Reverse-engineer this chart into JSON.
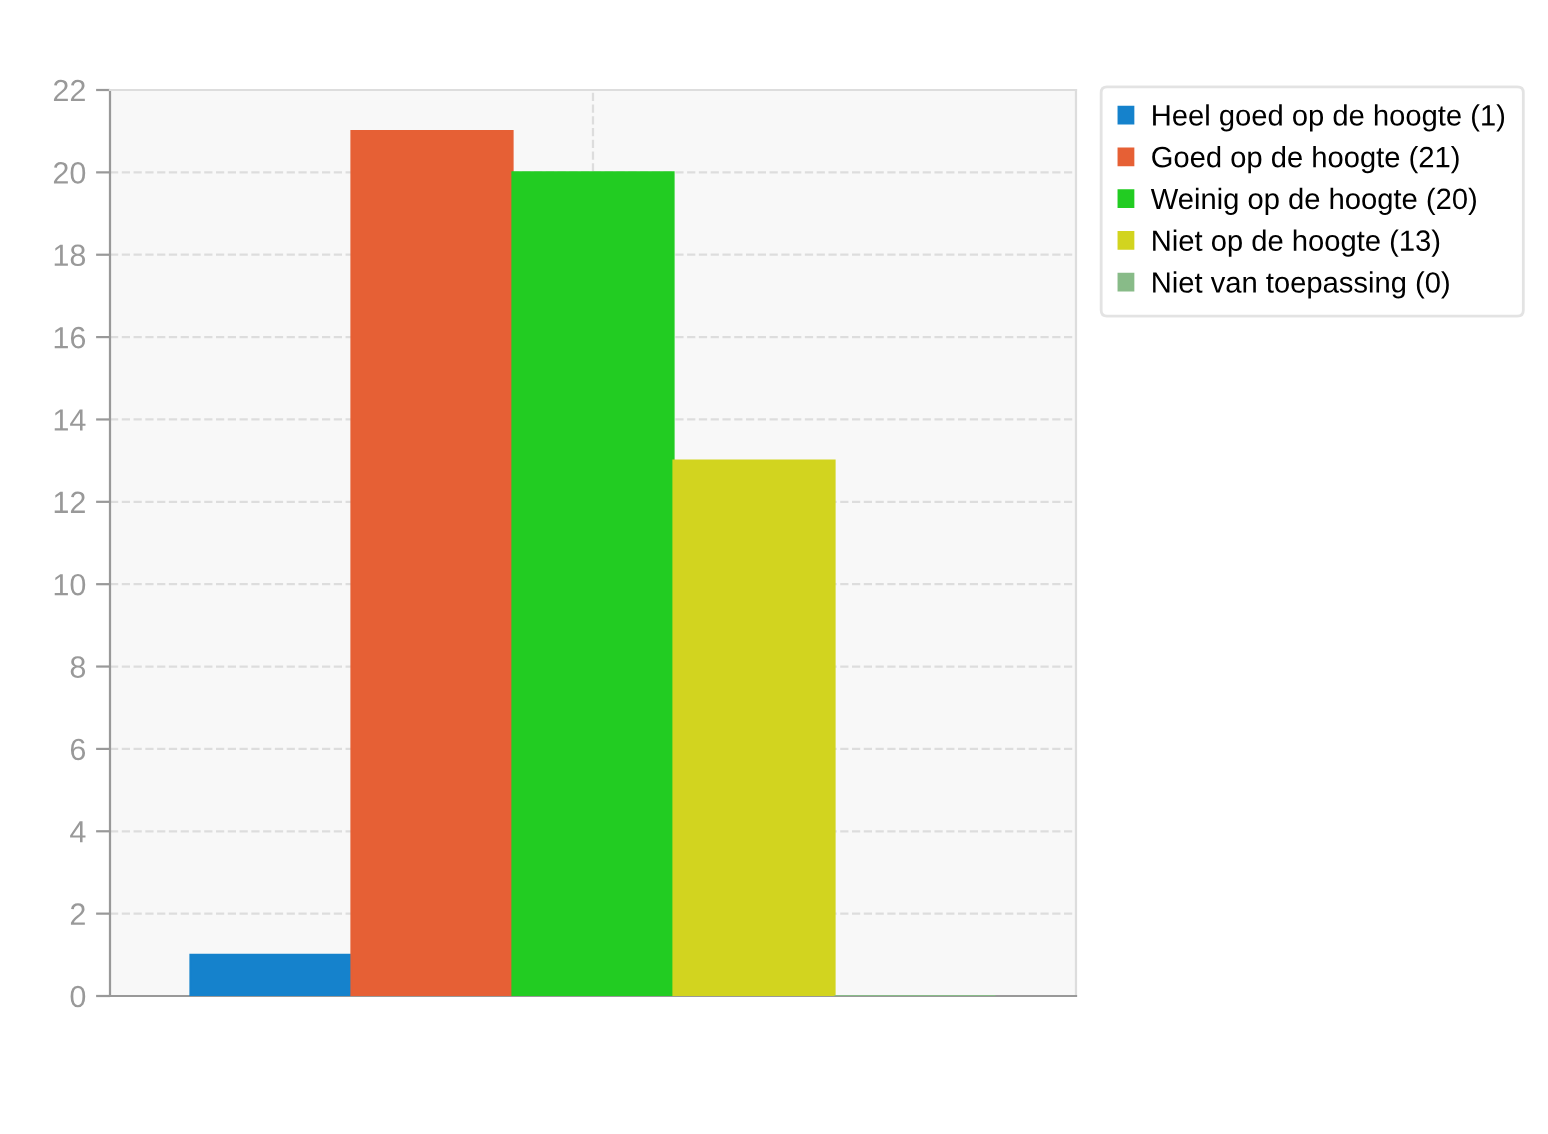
{
  "chart_data": {
    "type": "bar",
    "categories": [
      null
    ],
    "series": [
      {
        "name": "Heel goed op de hoogte (1)",
        "color": "#1582cc",
        "values": [
          1
        ]
      },
      {
        "name": "Goed op de hoogte (21)",
        "color": "#e66035",
        "values": [
          21
        ]
      },
      {
        "name": "Weinig op de hoogte (20)",
        "color": "#22cc22",
        "values": [
          20
        ]
      },
      {
        "name": "Niet op de hoogte (13)",
        "color": "#d2d41f",
        "values": [
          13
        ]
      },
      {
        "name": "Niet van toepassing (0)",
        "color": "#88bb88",
        "values": [
          0
        ]
      }
    ],
    "ylim": [
      0,
      22
    ],
    "yticks": [
      0,
      2,
      4,
      6,
      8,
      10,
      12,
      14,
      16,
      18,
      20,
      22
    ],
    "grid": true,
    "legend": "top right"
  }
}
